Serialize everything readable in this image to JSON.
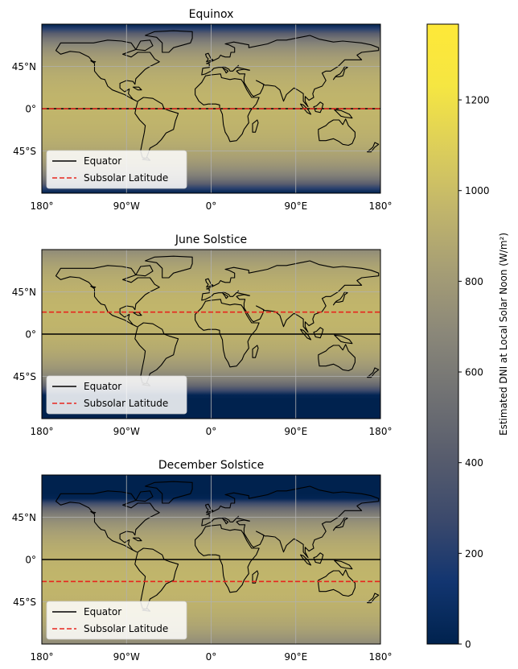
{
  "chart_data": [
    {
      "type": "heatmap",
      "title": "Equinox",
      "subsolar_latitude": 0,
      "xlim": [
        -180,
        180
      ],
      "ylim": [
        -90,
        90
      ],
      "x_ticks": [
        {
          "value": -180,
          "label": "180°"
        },
        {
          "value": -90,
          "label": "90°W"
        },
        {
          "value": 0,
          "label": "0°"
        },
        {
          "value": 90,
          "label": "90°E"
        },
        {
          "value": 180,
          "label": "180°"
        }
      ],
      "y_ticks": [
        {
          "value": 45,
          "label": "45°N"
        },
        {
          "value": 0,
          "label": "0°"
        },
        {
          "value": -45,
          "label": "45°S"
        }
      ],
      "series": [
        {
          "name": "Equator",
          "latitude": 0,
          "color": "#000000",
          "style": "solid"
        },
        {
          "name": "Subsolar Latitude",
          "latitude": 0,
          "color": "#e8271e",
          "style": "dashed"
        }
      ],
      "legend": "lower-left",
      "grid": true
    },
    {
      "type": "heatmap",
      "title": "June Solstice",
      "subsolar_latitude": 23.44,
      "xlim": [
        -180,
        180
      ],
      "ylim": [
        -90,
        90
      ],
      "x_ticks": [
        {
          "value": -180,
          "label": "180°"
        },
        {
          "value": -90,
          "label": "90°W"
        },
        {
          "value": 0,
          "label": "0°"
        },
        {
          "value": 90,
          "label": "90°E"
        },
        {
          "value": 180,
          "label": "180°"
        }
      ],
      "y_ticks": [
        {
          "value": 45,
          "label": "45°N"
        },
        {
          "value": 0,
          "label": "0°"
        },
        {
          "value": -45,
          "label": "45°S"
        }
      ],
      "series": [
        {
          "name": "Equator",
          "latitude": 0,
          "color": "#000000",
          "style": "solid"
        },
        {
          "name": "Subsolar Latitude",
          "latitude": 23.44,
          "color": "#e8271e",
          "style": "dashed"
        }
      ],
      "legend": "lower-left",
      "grid": true
    },
    {
      "type": "heatmap",
      "title": "December Solstice",
      "subsolar_latitude": -23.44,
      "xlim": [
        -180,
        180
      ],
      "ylim": [
        -90,
        90
      ],
      "x_ticks": [
        {
          "value": -180,
          "label": "180°"
        },
        {
          "value": -90,
          "label": "90°W"
        },
        {
          "value": 0,
          "label": "0°"
        },
        {
          "value": 90,
          "label": "90°E"
        },
        {
          "value": 180,
          "label": "180°"
        }
      ],
      "y_ticks": [
        {
          "value": 45,
          "label": "45°N"
        },
        {
          "value": 0,
          "label": "0°"
        },
        {
          "value": -45,
          "label": "45°S"
        }
      ],
      "series": [
        {
          "name": "Equator",
          "latitude": 0,
          "color": "#000000",
          "style": "solid"
        },
        {
          "name": "Subsolar Latitude",
          "latitude": -23.44,
          "color": "#e8271e",
          "style": "dashed"
        }
      ],
      "legend": "lower-left",
      "grid": true
    }
  ],
  "colorbar": {
    "label": "Estimated DNI at Local Solar Noon (W/m²)",
    "range": [
      0,
      1367
    ],
    "colormap": "cividis",
    "ticks": [
      0,
      200,
      400,
      600,
      800,
      1000,
      1200
    ],
    "tick_labels": [
      "0",
      "200",
      "400",
      "600",
      "800",
      "1000",
      "1200"
    ]
  },
  "colors": {
    "equator": "#000000",
    "subsolar": "#e8271e",
    "grid": "#b0b0b0",
    "coastline": "#000000"
  }
}
